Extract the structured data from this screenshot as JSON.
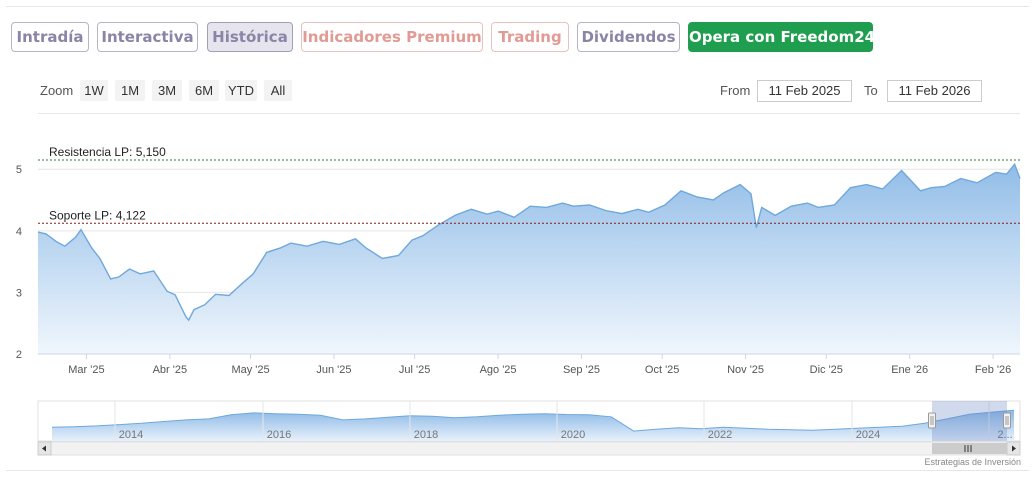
{
  "tabs": [
    {
      "label": "Intradía",
      "state": "normal"
    },
    {
      "label": "Interactiva",
      "state": "normal"
    },
    {
      "label": "Histórica",
      "state": "active"
    },
    {
      "label": "Indicadores Premium",
      "state": "premium"
    },
    {
      "label": "Trading",
      "state": "premium"
    },
    {
      "label": "Dividendos",
      "state": "normal"
    },
    {
      "label": "Opera con Freedom24",
      "state": "cta"
    }
  ],
  "zoom": {
    "label": "Zoom",
    "options": [
      "1W",
      "1M",
      "3M",
      "6M",
      "YTD",
      "All"
    ]
  },
  "range": {
    "from_label": "From",
    "from_value": "11 Feb 2025",
    "to_label": "To",
    "to_value": "11 Feb 2026"
  },
  "credit": "Estrategias de Inversión",
  "colors": {
    "line": "#6fa8dc",
    "fill_top": "#8bb9e6",
    "fill_bottom": "#eef5fc",
    "support": "#8b1a1a",
    "resistance": "#2e7d32",
    "cta": "#1f9e4f"
  },
  "chart_data": {
    "type": "area",
    "ylim": [
      2,
      5.15
    ],
    "y_ticks": [
      2,
      3,
      4,
      5
    ],
    "x_tick_labels": [
      "Mar '25",
      "Abr '25",
      "May '25",
      "Jun '25",
      "Jul '25",
      "Ago '25",
      "Sep '25",
      "Oct '25",
      "Nov '25",
      "Dic '25",
      "Ene '26",
      "Feb '26"
    ],
    "x_tick_dates": [
      "2025-03-01",
      "2025-04-01",
      "2025-05-01",
      "2025-06-01",
      "2025-07-01",
      "2025-08-01",
      "2025-09-01",
      "2025-10-01",
      "2025-11-01",
      "2025-12-01",
      "2026-01-01",
      "2026-02-01"
    ],
    "series": [
      {
        "x": [
          "2025-02-11",
          "2025-02-14",
          "2025-02-18",
          "2025-02-21",
          "2025-02-25",
          "2025-02-27",
          "2025-03-03",
          "2025-03-06",
          "2025-03-10",
          "2025-03-13",
          "2025-03-17",
          "2025-03-21",
          "2025-03-26",
          "2025-03-31",
          "2025-04-03",
          "2025-04-07",
          "2025-04-08",
          "2025-04-10",
          "2025-04-14",
          "2025-04-18",
          "2025-04-23",
          "2025-04-28",
          "2025-05-02",
          "2025-05-07",
          "2025-05-12",
          "2025-05-16",
          "2025-05-22",
          "2025-05-28",
          "2025-06-03",
          "2025-06-09",
          "2025-06-13",
          "2025-06-19",
          "2025-06-25",
          "2025-06-30",
          "2025-07-04",
          "2025-07-10",
          "2025-07-16",
          "2025-07-22",
          "2025-07-28",
          "2025-08-01",
          "2025-08-07",
          "2025-08-13",
          "2025-08-19",
          "2025-08-25",
          "2025-08-29",
          "2025-09-04",
          "2025-09-10",
          "2025-09-16",
          "2025-09-22",
          "2025-09-26",
          "2025-10-02",
          "2025-10-08",
          "2025-10-14",
          "2025-10-20",
          "2025-10-24",
          "2025-10-30",
          "2025-11-03",
          "2025-11-05",
          "2025-11-07",
          "2025-11-12",
          "2025-11-18",
          "2025-11-24",
          "2025-11-28",
          "2025-12-04",
          "2025-12-10",
          "2025-12-16",
          "2025-12-22",
          "2025-12-29",
          "2026-01-05",
          "2026-01-09",
          "2026-01-14",
          "2026-01-20",
          "2026-01-26",
          "2026-02-02",
          "2026-02-06",
          "2026-02-09",
          "2026-02-11"
        ],
        "y": [
          3.98,
          3.95,
          3.82,
          3.75,
          3.9,
          4.02,
          3.72,
          3.55,
          3.22,
          3.25,
          3.38,
          3.3,
          3.35,
          3.02,
          2.96,
          2.6,
          2.55,
          2.72,
          2.8,
          2.97,
          2.95,
          3.15,
          3.3,
          3.65,
          3.72,
          3.8,
          3.75,
          3.83,
          3.78,
          3.87,
          3.72,
          3.55,
          3.6,
          3.85,
          3.92,
          4.1,
          4.25,
          4.35,
          4.27,
          4.32,
          4.22,
          4.4,
          4.38,
          4.45,
          4.4,
          4.42,
          4.33,
          4.28,
          4.35,
          4.3,
          4.42,
          4.65,
          4.55,
          4.5,
          4.62,
          4.75,
          4.6,
          4.05,
          4.38,
          4.25,
          4.4,
          4.45,
          4.38,
          4.42,
          4.7,
          4.75,
          4.68,
          4.98,
          4.65,
          4.7,
          4.72,
          4.85,
          4.78,
          4.95,
          4.92,
          5.08,
          4.85
        ]
      }
    ],
    "annotations": [
      {
        "text": "Resistencia LP: 5,150",
        "value": 5.15
      },
      {
        "text": "Soporte LP: 4,122",
        "value": 4.122
      }
    ],
    "navigator": {
      "x_tick_labels": [
        "2014",
        "2016",
        "2018",
        "2020",
        "2022",
        "2024",
        "2..."
      ],
      "values": [
        0.3,
        0.32,
        0.35,
        0.4,
        0.45,
        0.52,
        0.58,
        0.62,
        0.78,
        0.85,
        0.82,
        0.8,
        0.76,
        0.58,
        0.62,
        0.68,
        0.74,
        0.72,
        0.66,
        0.7,
        0.76,
        0.8,
        0.82,
        0.79,
        0.78,
        0.7,
        0.15,
        0.22,
        0.28,
        0.24,
        0.3,
        0.26,
        0.22,
        0.2,
        0.18,
        0.22,
        0.26,
        0.3,
        0.34,
        0.45,
        0.62,
        0.8,
        0.88,
        0.95
      ]
    }
  }
}
